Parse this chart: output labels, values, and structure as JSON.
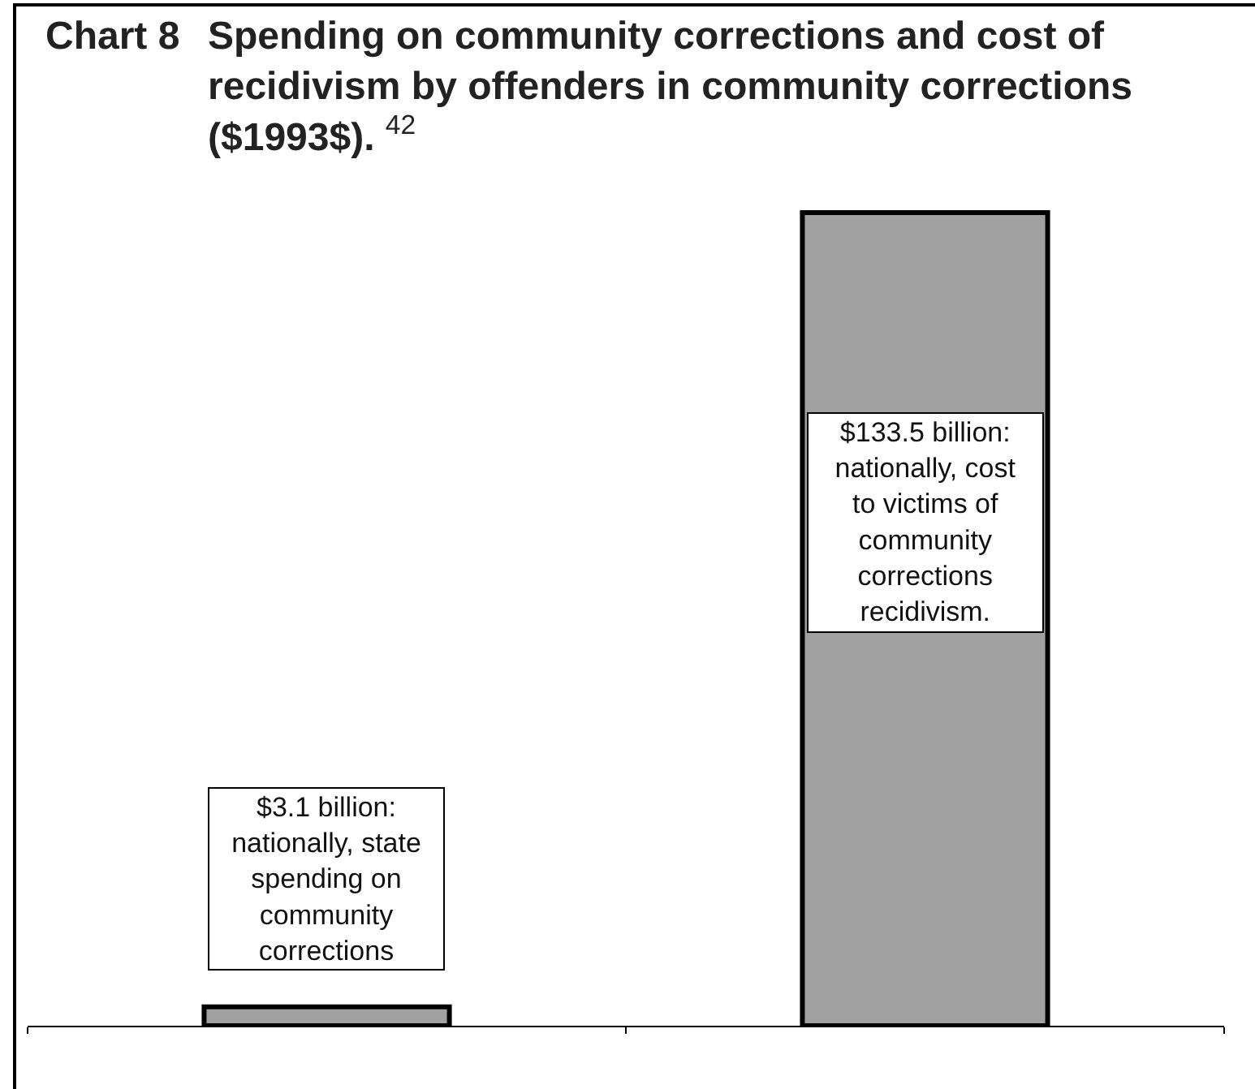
{
  "chart_data": {
    "type": "bar",
    "title": "Chart 8 Spending on community corrections and cost of recidivism by offenders in community corrections ($1993$). $^{42}$",
    "categories": [
      null,
      null
    ],
    "values": [
      3.1,
      133.5
    ],
    "color": "#a0a0a0",
    "value_labels": [
      "$3.1 billion: nationally, state spending on community corrections",
      "$133.5 billion: nationally, cost to victims of community corrections recidivism."
    ]
  }
}
